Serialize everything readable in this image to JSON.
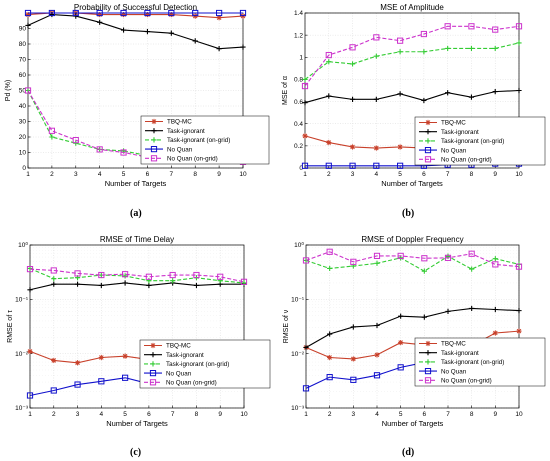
{
  "styles": {
    "TBQ-MC": {
      "color": "#c8402a",
      "marker": "star",
      "dash": ""
    },
    "Task-ignorant": {
      "color": "#000000",
      "marker": "plus",
      "dash": ""
    },
    "Task-ignorant (on-grid)": {
      "color": "#33cc33",
      "marker": "plus",
      "dash": "4,2"
    },
    "No Quan": {
      "color": "#1010cc",
      "marker": "square",
      "dash": ""
    },
    "No Quan (on-grid)": {
      "color": "#cc33cc",
      "marker": "square",
      "dash": "4,2"
    }
  },
  "panel_labels": [
    "(a)",
    "(b)",
    "(c)",
    "(d)"
  ],
  "chart_data": [
    {
      "type": "line",
      "title": "Probability of Successful Detection",
      "xlabel": "Number of Targets",
      "ylabel": "Pd (%)",
      "yscale": "linear",
      "xlim": [
        1,
        10
      ],
      "ylim": [
        0,
        100
      ],
      "xticks": [
        "1",
        "2",
        "3",
        "4",
        "5",
        "6",
        "7",
        "8",
        "9",
        "10"
      ],
      "yticks": [
        0,
        10,
        20,
        30,
        40,
        50,
        60,
        70,
        80,
        90
      ],
      "grid": true,
      "legend_position": "lower-right",
      "x": [
        1,
        2,
        3,
        4,
        5,
        6,
        7,
        8,
        9,
        10
      ],
      "series": [
        {
          "name": "TBQ-MC",
          "values": [
            99,
            100,
            100,
            99,
            99,
            99,
            99,
            98,
            97,
            98
          ]
        },
        {
          "name": "Task-ignorant",
          "values": [
            92,
            99,
            98,
            94,
            89,
            88,
            87,
            82,
            77,
            78
          ]
        },
        {
          "name": "Task-ignorant (on-grid)",
          "values": [
            50,
            20,
            16,
            12,
            11,
            8,
            7,
            7,
            5,
            4
          ]
        },
        {
          "name": "No Quan",
          "values": [
            100,
            100,
            100,
            100,
            100,
            100,
            100,
            100,
            100,
            100
          ]
        },
        {
          "name": "No Quan (on-grid)",
          "values": [
            50,
            24,
            18,
            12,
            10,
            7,
            7,
            7,
            5,
            4
          ]
        }
      ]
    },
    {
      "type": "line",
      "title": "MSE of Amplitude",
      "xlabel": "Number of Targets",
      "ylabel": "MSE of α",
      "yscale": "linear",
      "xlim": [
        1,
        10
      ],
      "ylim": [
        0,
        1.4
      ],
      "xticks": [
        "1",
        "2",
        "3",
        "4",
        "5",
        "6",
        "7",
        "8",
        "9",
        "10"
      ],
      "yticks": [
        0,
        0.2,
        0.4,
        0.6,
        0.8,
        1,
        1.2,
        1.4
      ],
      "ytick_labels": [
        "0",
        "0.2",
        "0.4",
        "0.6",
        "0.8",
        "1",
        "1.2",
        "1.4"
      ],
      "grid": true,
      "legend_position": "center-right",
      "x": [
        1,
        2,
        3,
        4,
        5,
        6,
        7,
        8,
        9,
        10
      ],
      "series": [
        {
          "name": "TBQ-MC",
          "values": [
            0.29,
            0.23,
            0.19,
            0.18,
            0.19,
            0.18,
            0.17,
            0.19,
            0.18,
            0.18
          ]
        },
        {
          "name": "Task-ignorant",
          "values": [
            0.59,
            0.65,
            0.62,
            0.62,
            0.67,
            0.61,
            0.68,
            0.64,
            0.69,
            0.7
          ]
        },
        {
          "name": "Task-ignorant (on-grid)",
          "values": [
            0.8,
            0.96,
            0.94,
            1.01,
            1.05,
            1.05,
            1.08,
            1.08,
            1.08,
            1.13
          ]
        },
        {
          "name": "No Quan",
          "values": [
            0.02,
            0.02,
            0.02,
            0.02,
            0.02,
            0.02,
            0.03,
            0.03,
            0.04,
            0.04
          ]
        },
        {
          "name": "No Quan (on-grid)",
          "values": [
            0.74,
            1.02,
            1.09,
            1.18,
            1.15,
            1.21,
            1.28,
            1.28,
            1.25,
            1.28
          ]
        }
      ]
    },
    {
      "type": "line",
      "title": "RMSE of Time Delay",
      "xlabel": "Number of Targets",
      "ylabel": "RMSE of τ",
      "yscale": "log",
      "xlim": [
        1,
        10
      ],
      "ylim": [
        0.001,
        1
      ],
      "xticks": [
        "1",
        "2",
        "3",
        "4",
        "5",
        "6",
        "7",
        "8",
        "9",
        "10"
      ],
      "yticks": [
        0.001,
        0.01,
        0.1,
        1
      ],
      "ytick_labels": [
        "10⁻³",
        "10⁻²",
        "10⁻¹",
        "10⁰"
      ],
      "grid": true,
      "legend_position": "center-right",
      "x": [
        1,
        2,
        3,
        4,
        5,
        6,
        7,
        8,
        9,
        10
      ],
      "series": [
        {
          "name": "TBQ-MC",
          "values": [
            0.011,
            0.0075,
            0.0068,
            0.0085,
            0.009,
            0.0078,
            0.0098,
            0.0092,
            0.011,
            0.013
          ]
        },
        {
          "name": "Task-ignorant",
          "values": [
            0.15,
            0.19,
            0.19,
            0.18,
            0.2,
            0.18,
            0.2,
            0.18,
            0.19,
            0.19
          ]
        },
        {
          "name": "Task-ignorant (on-grid)",
          "values": [
            0.37,
            0.24,
            0.25,
            0.28,
            0.27,
            0.22,
            0.22,
            0.25,
            0.22,
            0.2
          ]
        },
        {
          "name": "No Quan",
          "values": [
            0.0017,
            0.0021,
            0.0027,
            0.0031,
            0.0036,
            0.0028,
            0.0037,
            0.0042,
            0.005,
            0.0054
          ]
        },
        {
          "name": "No Quan (on-grid)",
          "values": [
            0.36,
            0.34,
            0.3,
            0.28,
            0.29,
            0.26,
            0.28,
            0.28,
            0.26,
            0.21
          ]
        }
      ]
    },
    {
      "type": "line",
      "title": "RMSE of Doppler Frequency",
      "xlabel": "Number of Targets",
      "ylabel": "RMSE of ν",
      "yscale": "log",
      "xlim": [
        1,
        10
      ],
      "ylim": [
        0.001,
        1
      ],
      "xticks": [
        "1",
        "2",
        "3",
        "4",
        "5",
        "6",
        "7",
        "8",
        "9",
        "10"
      ],
      "yticks": [
        0.001,
        0.01,
        0.1,
        1
      ],
      "ytick_labels": [
        "10⁻³",
        "10⁻²",
        "10⁻¹",
        "10⁰"
      ],
      "grid": true,
      "legend_position": "center-right",
      "x": [
        1,
        2,
        3,
        4,
        5,
        6,
        7,
        8,
        9,
        10
      ],
      "series": [
        {
          "name": "TBQ-MC",
          "values": [
            0.013,
            0.0085,
            0.008,
            0.0095,
            0.016,
            0.0145,
            0.014,
            0.014,
            0.024,
            0.026
          ]
        },
        {
          "name": "Task-ignorant",
          "values": [
            0.013,
            0.023,
            0.031,
            0.033,
            0.049,
            0.047,
            0.06,
            0.068,
            0.065,
            0.062
          ]
        },
        {
          "name": "Task-ignorant (on-grid)",
          "values": [
            0.52,
            0.37,
            0.41,
            0.46,
            0.58,
            0.33,
            0.62,
            0.36,
            0.56,
            0.44
          ]
        },
        {
          "name": "No Quan",
          "values": [
            0.0023,
            0.0037,
            0.0033,
            0.004,
            0.0056,
            0.0069,
            0.0079,
            0.007,
            0.011,
            0.011
          ]
        },
        {
          "name": "No Quan (on-grid)",
          "values": [
            0.52,
            0.75,
            0.49,
            0.63,
            0.63,
            0.57,
            0.58,
            0.69,
            0.44,
            0.4
          ]
        }
      ]
    }
  ]
}
